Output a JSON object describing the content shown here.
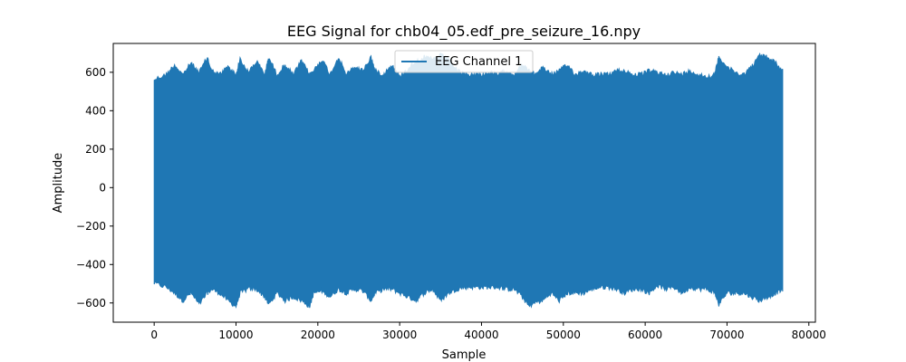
{
  "chart_data": {
    "type": "line",
    "title": "EEG Signal for chb04_05.edf_pre_seizure_16.npy",
    "xlabel": "Sample",
    "ylabel": "Amplitude",
    "xlim": [
      -5000,
      80800
    ],
    "ylim": [
      -700,
      750
    ],
    "x_ticks": [
      0,
      10000,
      20000,
      30000,
      40000,
      50000,
      60000,
      70000,
      80000
    ],
    "x_tick_labels": [
      "0",
      "10000",
      "20000",
      "30000",
      "40000",
      "50000",
      "60000",
      "70000",
      "80000"
    ],
    "y_ticks": [
      -600,
      -400,
      -200,
      0,
      200,
      400,
      600
    ],
    "y_tick_labels": [
      "−600",
      "−400",
      "−200",
      "0",
      "200",
      "400",
      "600"
    ],
    "grid": false,
    "legend_position": "top-center",
    "series": [
      {
        "name": "EEG Channel 1",
        "color": "#1f77b4",
        "x_range": [
          0,
          76800
        ],
        "envelope_x": [
          0,
          1500,
          2500,
          3500,
          4500,
          5500,
          6500,
          7000,
          8000,
          9000,
          10000,
          10500,
          11500,
          12500,
          13500,
          14000,
          15000,
          16000,
          17000,
          18000,
          19000,
          19500,
          20500,
          21500,
          22500,
          23500,
          24500,
          25500,
          26500,
          27000,
          28000,
          29000,
          30000,
          31000,
          32000,
          33000,
          34000,
          35000,
          36000,
          37000,
          38000,
          39000,
          40000,
          41000,
          42000,
          43000,
          44000,
          45000,
          45800,
          46500,
          47500,
          48500,
          49500,
          50500,
          51500,
          52500,
          53500,
          54500,
          55500,
          56500,
          57500,
          58500,
          59500,
          60500,
          61500,
          62500,
          63500,
          64500,
          65500,
          66500,
          67500,
          68500,
          69000,
          70000,
          71000,
          72000,
          73000,
          74000,
          75000,
          76000,
          76800
        ],
        "upper": [
          575,
          600,
          650,
          600,
          660,
          610,
          690,
          620,
          600,
          640,
          600,
          680,
          610,
          670,
          600,
          690,
          600,
          650,
          600,
          670,
          600,
          620,
          680,
          600,
          690,
          600,
          640,
          620,
          690,
          620,
          600,
          650,
          590,
          630,
          670,
          690,
          680,
          700,
          680,
          620,
          600,
          600,
          600,
          610,
          600,
          620,
          600,
          650,
          620,
          600,
          640,
          600,
          620,
          650,
          600,
          620,
          600,
          600,
          600,
          620,
          620,
          600,
          600,
          620,
          610,
          600,
          610,
          600,
          620,
          600,
          590,
          600,
          695,
          640,
          610,
          600,
          640,
          700,
          690,
          660,
          615
        ],
        "lower": [
          -510,
          -530,
          -560,
          -600,
          -560,
          -620,
          -560,
          -540,
          -560,
          -600,
          -630,
          -560,
          -540,
          -540,
          -580,
          -620,
          -560,
          -600,
          -580,
          -600,
          -630,
          -560,
          -550,
          -580,
          -540,
          -560,
          -540,
          -550,
          -600,
          -560,
          -540,
          -540,
          -560,
          -580,
          -600,
          -560,
          -540,
          -600,
          -560,
          -540,
          -530,
          -530,
          -530,
          -530,
          -530,
          -540,
          -540,
          -580,
          -630,
          -610,
          -600,
          -560,
          -600,
          -560,
          -560,
          -560,
          -540,
          -530,
          -530,
          -540,
          -560,
          -540,
          -540,
          -560,
          -520,
          -540,
          -530,
          -560,
          -530,
          -540,
          -540,
          -560,
          -620,
          -560,
          -560,
          -560,
          -580,
          -600,
          -580,
          -560,
          -540
        ]
      }
    ]
  }
}
